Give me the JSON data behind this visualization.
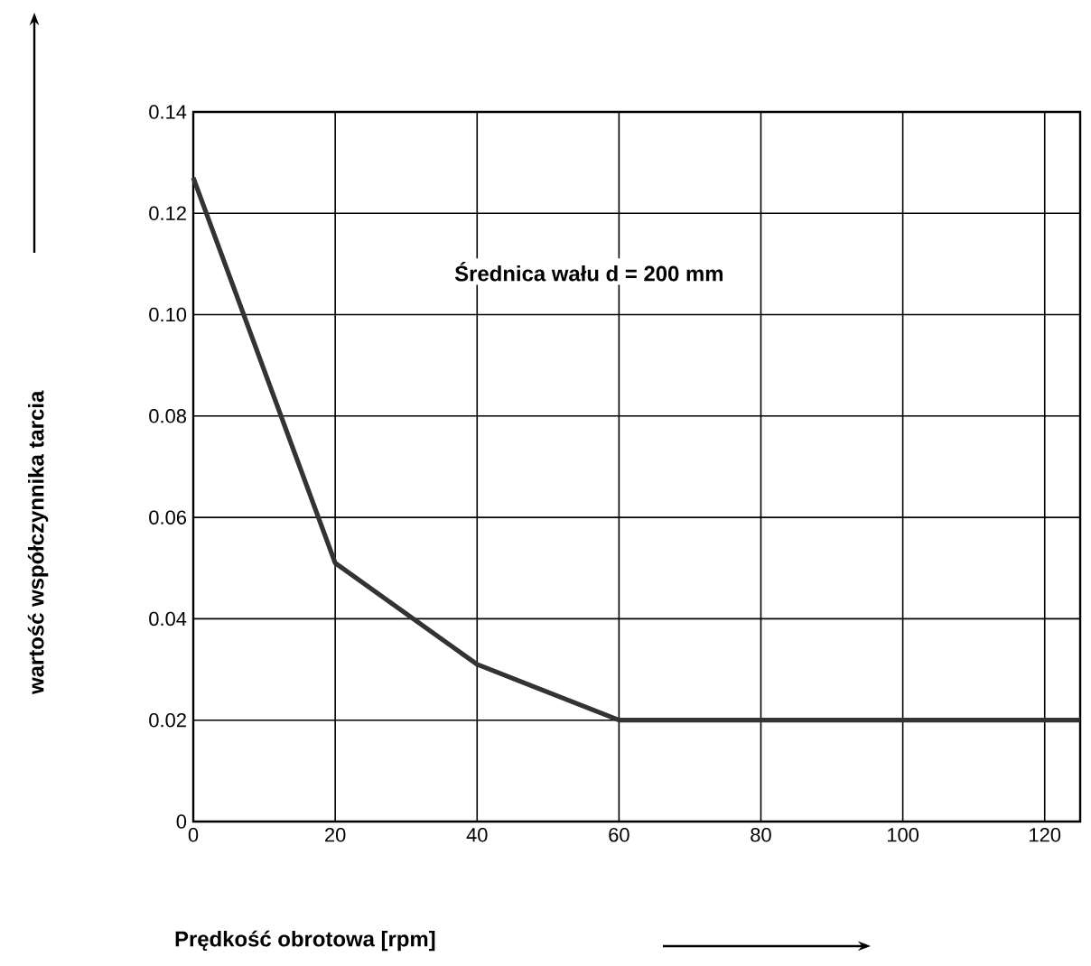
{
  "chart_data": {
    "type": "line",
    "xlabel": "Prędkość obrotowa [rpm]",
    "ylabel": "wartość współczynnika tarcia",
    "annotations": [
      "Średnica wału d = 200 mm"
    ],
    "x": [
      0,
      20,
      40,
      60,
      125
    ],
    "series": [
      {
        "color": "#333333",
        "values": [
          0.127,
          0.051,
          0.031,
          0.02,
          0.02
        ]
      }
    ],
    "xlim": [
      0,
      125
    ],
    "xticks": [
      0,
      20,
      40,
      60,
      80,
      100,
      120
    ],
    "ylim": [
      0,
      0.14
    ],
    "yticks": [
      0,
      0.02,
      0.04,
      0.06,
      0.08,
      {
        "value": 0.1,
        "label": "0.10"
      },
      0.12,
      0.14
    ],
    "grid": true,
    "marker": "none",
    "line_style": "solid"
  }
}
